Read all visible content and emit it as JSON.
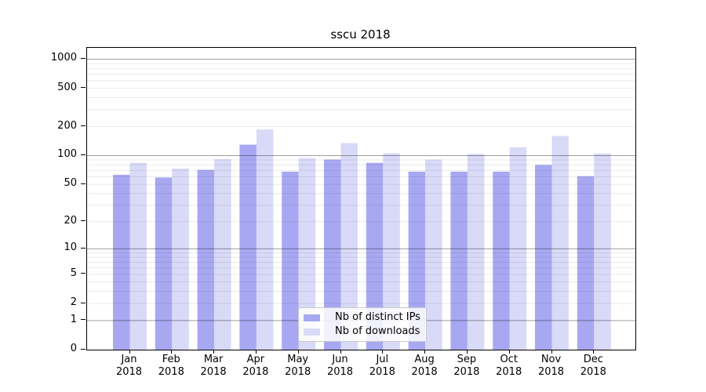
{
  "figure": {
    "background": "#ffffff",
    "axis_color": "#000000",
    "text_color": "#000000"
  },
  "chart_data": {
    "type": "bar",
    "title": "sscu 2018",
    "categories": [
      "Jan",
      "Feb",
      "Mar",
      "Apr",
      "May",
      "Jun",
      "Jul",
      "Aug",
      "Sep",
      "Oct",
      "Nov",
      "Dec"
    ],
    "category_year": "2018",
    "series": [
      {
        "name": "Nb of distinct IPs",
        "color": "#a8a8f2",
        "values": [
          63,
          59,
          71,
          130,
          68,
          91,
          84,
          68,
          68,
          68,
          80,
          61
        ]
      },
      {
        "name": "Nb of downloads",
        "color": "#d9d9f8",
        "values": [
          84,
          73,
          92,
          187,
          94,
          135,
          106,
          91,
          104,
          122,
          160,
          105
        ]
      }
    ],
    "y_axis": {
      "scale": "log10(value+1)",
      "ticks": [
        0,
        1,
        2,
        5,
        10,
        20,
        50,
        100,
        200,
        500,
        1000
      ],
      "major_gridlines": [
        1,
        10,
        100,
        1000
      ],
      "minor_gridlines": [
        2,
        3,
        4,
        5,
        6,
        7,
        8,
        9,
        20,
        30,
        40,
        50,
        60,
        70,
        80,
        90,
        200,
        300,
        400,
        500,
        600,
        700,
        800,
        900
      ],
      "range_top": 1300
    },
    "grid": true,
    "legend_position": "inside-bottom-center"
  }
}
